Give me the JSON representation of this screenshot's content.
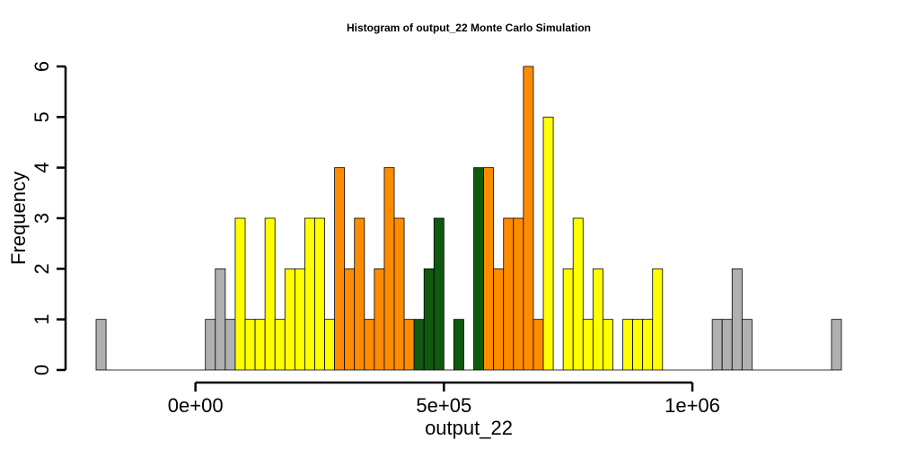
{
  "chart_data": {
    "type": "bar",
    "title": "Histogram of  output_22  Monte Carlo Simulation",
    "xlabel": "output_22",
    "ylabel": "Frequency",
    "bin_start": -200000,
    "bin_width": 20000,
    "counts": [
      1,
      0,
      0,
      0,
      0,
      0,
      0,
      0,
      0,
      0,
      0,
      1,
      2,
      1,
      3,
      1,
      1,
      3,
      1,
      2,
      2,
      3,
      3,
      1,
      4,
      2,
      3,
      1,
      2,
      4,
      3,
      1,
      1,
      2,
      3,
      0,
      1,
      0,
      4,
      4,
      2,
      3,
      3,
      6,
      1,
      5,
      0,
      2,
      3,
      1,
      2,
      1,
      0,
      1,
      1,
      1,
      2,
      0,
      0,
      0,
      0,
      0,
      1,
      1,
      2,
      1,
      0,
      0,
      0,
      0,
      0,
      0,
      0,
      0,
      1
    ],
    "xlim": [
      -200000,
      1300000
    ],
    "ylim": [
      0,
      6
    ],
    "x_ticks": [
      0,
      500000,
      1000000
    ],
    "x_tick_labels": [
      "0e+00",
      "5e+05",
      "1e+06"
    ],
    "y_ticks": [
      0,
      1,
      2,
      3,
      4,
      5,
      6
    ],
    "y_tick_labels": [
      "0",
      "1",
      "2",
      "3",
      "4",
      "5",
      "6"
    ],
    "color_zones": [
      {
        "from": -200000,
        "to": 80000,
        "color": "#b0b0b0"
      },
      {
        "from": 80000,
        "to": 280000,
        "color": "#ffff00"
      },
      {
        "from": 280000,
        "to": 440000,
        "color": "#ff8c00"
      },
      {
        "from": 440000,
        "to": 580000,
        "color": "#0f5a0f"
      },
      {
        "from": 580000,
        "to": 700000,
        "color": "#ff8c00"
      },
      {
        "from": 700000,
        "to": 940000,
        "color": "#ffff00"
      },
      {
        "from": 940000,
        "to": 1300000,
        "color": "#b0b0b0"
      }
    ],
    "bar_edge_color": "#000000",
    "grid": false,
    "legend": "none"
  }
}
